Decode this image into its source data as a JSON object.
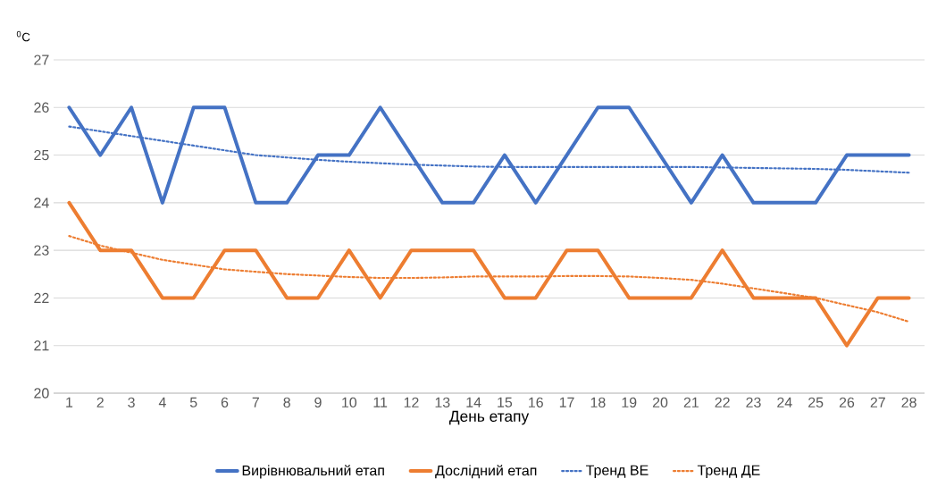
{
  "chart_data": {
    "type": "line",
    "xlabel": "День етапу",
    "ylabel": "$^{0}$C",
    "categories": [
      "1",
      "2",
      "3",
      "4",
      "5",
      "6",
      "7",
      "8",
      "9",
      "10",
      "11",
      "12",
      "13",
      "14",
      "15",
      "16",
      "17",
      "18",
      "19",
      "20",
      "21",
      "22",
      "23",
      "24",
      "25",
      "26",
      "27",
      "28"
    ],
    "series": [
      {
        "name": "Вирівнювальний етап",
        "color": "#4472c4",
        "line_style": "solid",
        "values": [
          26,
          25,
          26,
          24,
          26,
          26,
          24,
          24,
          25,
          25,
          26,
          25,
          24,
          24,
          25,
          24,
          25,
          26,
          26,
          25,
          24,
          25,
          24,
          24,
          24,
          25,
          25,
          25
        ]
      },
      {
        "name": "Дослідний етап",
        "color": "#ed7d31",
        "line_style": "solid",
        "values": [
          24,
          23,
          23,
          22,
          22,
          23,
          23,
          22,
          22,
          23,
          22,
          23,
          23,
          23,
          22,
          22,
          23,
          23,
          22,
          22,
          22,
          23,
          22,
          22,
          22,
          21,
          22,
          22
        ]
      },
      {
        "name": "Тренд ВЕ",
        "color": "#4472c4",
        "line_style": "dotted",
        "values": [
          25.6,
          25.5,
          25.4,
          25.3,
          25.2,
          25.1,
          25.0,
          24.95,
          24.9,
          24.86,
          24.83,
          24.8,
          24.78,
          24.76,
          24.75,
          24.75,
          24.75,
          24.75,
          24.75,
          24.75,
          24.75,
          24.74,
          24.73,
          24.72,
          24.71,
          24.69,
          24.66,
          24.63
        ]
      },
      {
        "name": "Тренд ДЕ",
        "color": "#ed7d31",
        "line_style": "dotted",
        "values": [
          23.3,
          23.1,
          22.95,
          22.8,
          22.7,
          22.6,
          22.55,
          22.5,
          22.47,
          22.44,
          22.42,
          22.42,
          22.43,
          22.45,
          22.45,
          22.45,
          22.46,
          22.46,
          22.45,
          22.42,
          22.38,
          22.3,
          22.2,
          22.1,
          22.0,
          21.85,
          21.7,
          21.5
        ]
      }
    ],
    "ylim": [
      20,
      27
    ],
    "yticks": [
      20,
      21,
      22,
      23,
      24,
      25,
      26,
      27
    ],
    "grid": "y",
    "legend": "bottom",
    "marker": "none"
  }
}
